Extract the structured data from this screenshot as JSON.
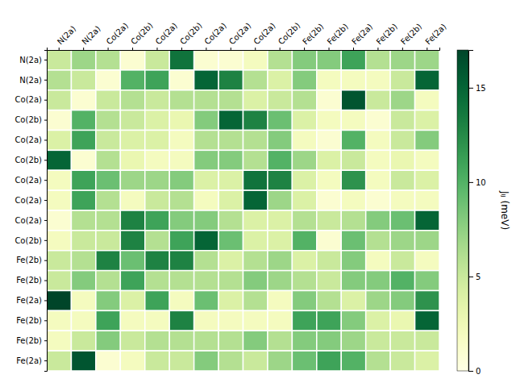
{
  "chart_data": {
    "type": "heatmap",
    "row_labels": [
      "N(2a)",
      "N(2a)",
      "Co(2a)",
      "Co(2b)",
      "Co(2a)",
      "Co(2b)",
      "Co(2a)",
      "Co(2a)",
      "Co(2a)",
      "Co(2b)",
      "Fe(2b)",
      "Fe(2b)",
      "Fe(2a)",
      "Fe(2b)",
      "Fe(2b)",
      "Fe(2a)"
    ],
    "col_labels": [
      "N(2a)",
      "N(2a)",
      "Co(2a)",
      "Co(2b)",
      "Co(2a)",
      "Co(2b)",
      "Co(2a)",
      "Co(2a)",
      "Co(2a)",
      "Co(2b)",
      "Fe(2b)",
      "Fe(2b)",
      "Fe(2a)",
      "Fe(2b)",
      "Fe(2b)",
      "Fe(2a)"
    ],
    "color": "YlGn",
    "colorbar_lim": [
      0,
      17
    ],
    "colorbar_ticks": [
      0,
      5,
      10,
      15
    ],
    "colorbar_label": "Jᵢⱼ (meV)",
    "matrix": [
      [
        5,
        7,
        6,
        1,
        5,
        14,
        1,
        1,
        2,
        6,
        8,
        8,
        11,
        6,
        7,
        7
      ],
      [
        6,
        5,
        1,
        10,
        11,
        1,
        15,
        13,
        6,
        4,
        8,
        2,
        2,
        2,
        5,
        15
      ],
      [
        5,
        1,
        5,
        6,
        5,
        6,
        6,
        6,
        4,
        5,
        6,
        1,
        16,
        5,
        7,
        2
      ],
      [
        1,
        10,
        6,
        5,
        4,
        3,
        8,
        15,
        13,
        9,
        4,
        2,
        2,
        1,
        5,
        4
      ],
      [
        4,
        11,
        5,
        4,
        4,
        2,
        6,
        6,
        6,
        8,
        2,
        1,
        10,
        2,
        5,
        8
      ],
      [
        15,
        1,
        6,
        3,
        2,
        2,
        8,
        8,
        6,
        10,
        7,
        4,
        5,
        2,
        3,
        2
      ],
      [
        2,
        11,
        9,
        7,
        7,
        8,
        4,
        4,
        14,
        13,
        4,
        2,
        12,
        2,
        5,
        4
      ],
      [
        2,
        11,
        6,
        2,
        5,
        6,
        2,
        4,
        15,
        7,
        4,
        1,
        2,
        1,
        2,
        2
      ],
      [
        1,
        6,
        6,
        13,
        11,
        8,
        8,
        6,
        4,
        4,
        6,
        5,
        6,
        8,
        9,
        15
      ],
      [
        2,
        5,
        5,
        13,
        6,
        11,
        15,
        9,
        4,
        4,
        10,
        1,
        9,
        6,
        7,
        7
      ],
      [
        5,
        6,
        13,
        9,
        13,
        13,
        6,
        4,
        6,
        7,
        4,
        5,
        8,
        2,
        5,
        2
      ],
      [
        5,
        8,
        6,
        11,
        6,
        6,
        6,
        6,
        8,
        7,
        6,
        5,
        8,
        8,
        10,
        8
      ],
      [
        17,
        2,
        8,
        4,
        11,
        2,
        9,
        4,
        6,
        2,
        8,
        6,
        4,
        7,
        8,
        12
      ],
      [
        2,
        2,
        11,
        2,
        2,
        13,
        2,
        2,
        2,
        2,
        11,
        11,
        8,
        4,
        3,
        15
      ],
      [
        2,
        5,
        8,
        5,
        6,
        6,
        6,
        6,
        8,
        6,
        8,
        8,
        7,
        5,
        5,
        5
      ],
      [
        5,
        16,
        1,
        2,
        5,
        5,
        8,
        6,
        5,
        7,
        9,
        11,
        10,
        6,
        5,
        4
      ]
    ]
  }
}
